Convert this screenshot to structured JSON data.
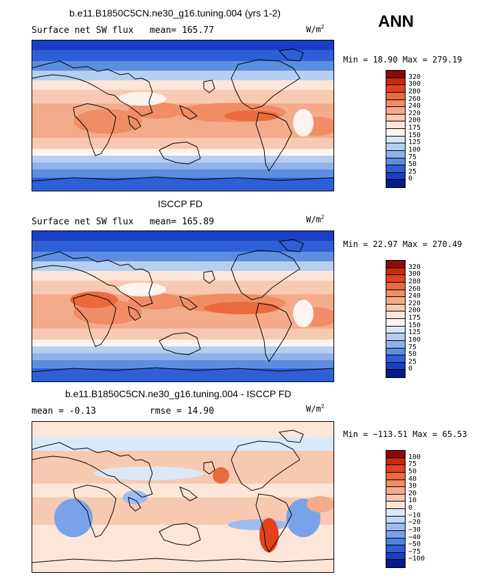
{
  "season": "ANN",
  "panels": [
    {
      "id": "model",
      "title": "b.e11.B1850C5CN.ne30_g16.tuning.004 (yrs 1-2)",
      "left_text": "Surface net SW flux",
      "right_text": "mean= 165.77",
      "units": "W/m",
      "units_sup": "2",
      "minmax": "Min =  18.90 Max = 279.19",
      "colorbar": {
        "labels": [
          "320",
          "300",
          "280",
          "260",
          "240",
          "220",
          "200",
          "175",
          "150",
          "125",
          "100",
          "75",
          "50",
          "25",
          "0"
        ],
        "colors": [
          "#8b0a0a",
          "#c8290f",
          "#e2431c",
          "#ea6a3e",
          "#f08c66",
          "#f4ab8c",
          "#f8c9b1",
          "#fde6d8",
          "#fdf4ee",
          "#d7e6f7",
          "#b6cff0",
          "#8fb2ea",
          "#5d8de0",
          "#2f5fd6",
          "#1a3ec8",
          "#061a8c"
        ]
      },
      "chart_data": {
        "type": "heatmap",
        "variable": "Surface net SW flux",
        "mean": 165.77,
        "min": 18.9,
        "max": 279.19,
        "units": "W/m2",
        "contour_levels": [
          0,
          25,
          50,
          75,
          100,
          125,
          150,
          175,
          200,
          220,
          240,
          260,
          280,
          300,
          320
        ]
      }
    },
    {
      "id": "obs",
      "title": "ISCCP FD",
      "left_text": "Surface net SW flux",
      "right_text": "mean= 165.89",
      "units": "W/m",
      "units_sup": "2",
      "minmax": "Min =  22.97 Max = 270.49",
      "colorbar": {
        "labels": [
          "320",
          "300",
          "280",
          "260",
          "240",
          "220",
          "200",
          "175",
          "150",
          "125",
          "100",
          "75",
          "50",
          "25",
          "0"
        ],
        "colors": [
          "#8b0a0a",
          "#c8290f",
          "#e2431c",
          "#ea6a3e",
          "#f08c66",
          "#f4ab8c",
          "#f8c9b1",
          "#fde6d8",
          "#fdf4ee",
          "#d7e6f7",
          "#b6cff0",
          "#8fb2ea",
          "#5d8de0",
          "#2f5fd6",
          "#1a3ec8",
          "#061a8c"
        ]
      },
      "chart_data": {
        "type": "heatmap",
        "variable": "Surface net SW flux",
        "mean": 165.89,
        "min": 22.97,
        "max": 270.49,
        "units": "W/m2",
        "contour_levels": [
          0,
          25,
          50,
          75,
          100,
          125,
          150,
          175,
          200,
          220,
          240,
          260,
          280,
          300,
          320
        ]
      }
    },
    {
      "id": "diff",
      "title": "b.e11.B1850C5CN.ne30_g16.tuning.004 - ISCCP FD",
      "left_text": "mean =  -0.13",
      "right_text": "rmse =  14.90",
      "units": "W/m",
      "units_sup": "2",
      "minmax": "Min = −113.51 Max =  65.53",
      "colorbar": {
        "labels": [
          "100",
          "75",
          "50",
          "40",
          "30",
          "20",
          "10",
          "0",
          "−10",
          "−20",
          "−30",
          "−40",
          "−50",
          "−75",
          "−100"
        ],
        "colors": [
          "#8b0a0a",
          "#c8290f",
          "#e2431c",
          "#ea6a3e",
          "#f08c66",
          "#f4ab8c",
          "#f8c9b1",
          "#fde6d8",
          "#dbe8f8",
          "#c2d7f3",
          "#9dbdee",
          "#7aa2e8",
          "#5282df",
          "#2f5fd6",
          "#1a3ec8",
          "#061a8c"
        ]
      },
      "chart_data": {
        "type": "heatmap",
        "variable": "Surface net SW flux difference",
        "mean": -0.13,
        "rmse": 14.9,
        "min": -113.51,
        "max": 65.53,
        "units": "W/m2",
        "contour_levels": [
          -100,
          -75,
          -50,
          -40,
          -30,
          -20,
          -10,
          0,
          10,
          20,
          30,
          40,
          50,
          75,
          100
        ]
      }
    }
  ]
}
